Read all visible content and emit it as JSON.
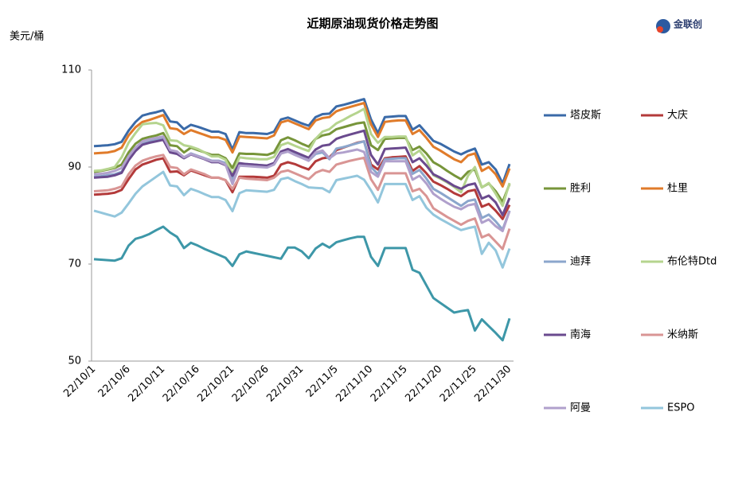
{
  "chart_data": {
    "type": "line",
    "title": "近期原油现货价格走势图",
    "y_label": "美元/桶",
    "logo": "金联创",
    "categories": [
      "22/10/1",
      null,
      null,
      null,
      null,
      "22/10/6",
      null,
      null,
      null,
      null,
      "22/10/11",
      null,
      null,
      null,
      null,
      "22/10/16",
      null,
      null,
      null,
      null,
      "22/10/21",
      null,
      null,
      null,
      null,
      "22/10/26",
      null,
      null,
      null,
      null,
      "22/10/31",
      null,
      null,
      null,
      null,
      "22/11/5",
      null,
      null,
      null,
      null,
      "22/11/10",
      null,
      null,
      null,
      null,
      "22/11/15",
      null,
      null,
      null,
      null,
      "22/11/20",
      null,
      null,
      null,
      null,
      "22/11/25",
      null,
      null,
      null,
      null,
      "22/11/30"
    ],
    "ylim": [
      50,
      110
    ],
    "yticks": [
      50,
      70,
      90,
      110
    ],
    "grid": false,
    "series": [
      {
        "name": "塔皮斯",
        "color": "#3a6aa8",
        "values": [
          94.3,
          94.4,
          94.5,
          94.7,
          95.2,
          97.5,
          99.3,
          100.6,
          101,
          101.3,
          101.7,
          99.4,
          99.2,
          97.8,
          98.7,
          98.3,
          97.8,
          97.3,
          97.3,
          96.8,
          93.6,
          97.2,
          97,
          97,
          96.9,
          96.8,
          97.3,
          99.8,
          100.2,
          99.6,
          99,
          98.5,
          100.3,
          100.9,
          101,
          102.5,
          102.8,
          103.2,
          103.6,
          104,
          99.8,
          97,
          100.3,
          100.4,
          100.5,
          100.5,
          97.7,
          98.6,
          97,
          95.4,
          94.8,
          94,
          93.2,
          92.6,
          93.3,
          93.8,
          90.5,
          91,
          89.5,
          86.6,
          90.6
        ]
      },
      {
        "name": "大庆",
        "color": "#b33a3a",
        "values": [
          84.3,
          84.4,
          84.5,
          84.7,
          85.3,
          87.5,
          89.5,
          90.5,
          91,
          91.5,
          91.8,
          89,
          89.1,
          88.3,
          89.3,
          88.8,
          88.3,
          87.8,
          87.8,
          87.3,
          84.8,
          88,
          88,
          88,
          87.9,
          87.8,
          88.2,
          90.5,
          91,
          90.6,
          90,
          89.5,
          91.2,
          91.8,
          92,
          93.5,
          94,
          94.5,
          95,
          95.3,
          90.5,
          89.5,
          91.8,
          92,
          92.1,
          92.2,
          89.2,
          90.2,
          88.7,
          87,
          86.3,
          85.5,
          84.6,
          84,
          85,
          85.3,
          81.8,
          82.4,
          81,
          79.3,
          82.2
        ]
      },
      {
        "name": "胜利",
        "color": "#77953a",
        "values": [
          89,
          89.2,
          89.5,
          89.8,
          90.5,
          93,
          94.8,
          95.8,
          96.2,
          96.5,
          97,
          94.5,
          94.3,
          93,
          94,
          93.5,
          93,
          92.5,
          92.5,
          91.8,
          89.8,
          92.8,
          92.7,
          92.7,
          92.6,
          92.5,
          93,
          95.5,
          96.1,
          95.5,
          94.8,
          94.2,
          95.8,
          96.5,
          96.8,
          97.8,
          98.2,
          98.6,
          99,
          99.2,
          94.5,
          93.5,
          95.8,
          95.9,
          96,
          96,
          93.5,
          94.2,
          92.8,
          91,
          90.2,
          89.2,
          88.3,
          87.5,
          89,
          89.5,
          85.8,
          86.6,
          85,
          82.8,
          86.5
        ]
      },
      {
        "name": "杜里",
        "color": "#e07b2a",
        "values": [
          92.8,
          92.9,
          93,
          93.3,
          94,
          96.5,
          98.2,
          99.3,
          99.7,
          100.2,
          100.7,
          98,
          97.8,
          96.8,
          97.6,
          97.1,
          96.6,
          96.1,
          96.1,
          95.6,
          93,
          96.3,
          96.2,
          96.1,
          96,
          95.9,
          96.5,
          99.2,
          99.6,
          99,
          98.4,
          97.8,
          99.6,
          100.1,
          100.3,
          101.5,
          102,
          102.4,
          102.8,
          103.2,
          98.8,
          96.2,
          99.3,
          99.5,
          99.6,
          99.6,
          96.8,
          97.6,
          96,
          94.2,
          93.4,
          92.5,
          91.6,
          91,
          92.4,
          92.8,
          89.2,
          90,
          88.5,
          86,
          89.7
        ]
      },
      {
        "name": "迪拜",
        "color": "#8ba6cc",
        "values": [
          88,
          88.1,
          88.3,
          88.5,
          89,
          91.5,
          93.5,
          94.8,
          95.2,
          95.7,
          96.1,
          93.2,
          93,
          92,
          92.8,
          92.3,
          91.8,
          91.3,
          91.3,
          90.8,
          87.2,
          90.7,
          90.6,
          90.5,
          90.4,
          90.3,
          90.8,
          92.8,
          93.2,
          92.6,
          92,
          91.3,
          92.7,
          93,
          91.6,
          93.8,
          94.1,
          94.5,
          94.9,
          95.3,
          90,
          88.5,
          91.6,
          91.7,
          91.8,
          91.8,
          88.6,
          89.4,
          87.6,
          85.5,
          84.7,
          83.8,
          82.9,
          82,
          83,
          83.3,
          79.5,
          80.2,
          78.8,
          77.1,
          81
        ]
      },
      {
        "name": "布伦特Dtd",
        "color": "#b5d48e",
        "values": [
          89.2,
          89.3,
          89.6,
          90,
          92,
          95,
          97,
          98.8,
          99,
          99.1,
          98.6,
          95.5,
          95.4,
          94.5,
          94.2,
          93.7,
          93,
          92.2,
          92.2,
          91.5,
          88.5,
          92,
          91.8,
          91.7,
          91.6,
          91.6,
          92.1,
          94.5,
          95,
          94.4,
          93.8,
          93.3,
          95.8,
          97.3,
          97.8,
          99,
          99.7,
          100.5,
          101.2,
          102,
          96.8,
          95,
          96.2,
          96.2,
          96.3,
          96.3,
          92.4,
          93.4,
          91.5,
          88.3,
          87.6,
          86.8,
          85.9,
          84.8,
          88.2,
          90,
          85.8,
          86.7,
          84.5,
          82,
          86.7
        ]
      },
      {
        "name": "南海",
        "color": "#6a4a8e",
        "values": [
          87.8,
          87.9,
          88,
          88.3,
          88.8,
          91.4,
          93.3,
          94.6,
          95,
          95.3,
          95.6,
          93,
          92.7,
          91.8,
          92.6,
          92.1,
          91.6,
          91,
          91,
          90.4,
          88.2,
          90.8,
          90.6,
          90.5,
          90.4,
          90.3,
          90.8,
          93.2,
          93.7,
          93.1,
          92.5,
          91.9,
          93.6,
          94.4,
          94.6,
          95.8,
          96.3,
          96.7,
          97.1,
          97.5,
          92.5,
          90.5,
          93.7,
          93.8,
          93.9,
          94,
          91,
          91.8,
          90.3,
          88.5,
          87.8,
          87,
          86.1,
          85.5,
          86.3,
          86.6,
          83.5,
          84.1,
          82.7,
          80.1,
          83.6
        ]
      },
      {
        "name": "米纳斯",
        "color": "#d99594",
        "values": [
          85,
          85.1,
          85.2,
          85.5,
          86,
          88.5,
          90.3,
          91.3,
          91.8,
          92.2,
          92.5,
          90,
          89.8,
          88.5,
          89.5,
          89,
          88.5,
          87.8,
          87.8,
          87.3,
          85.5,
          87.8,
          87.6,
          87.5,
          87.4,
          87.3,
          87.8,
          89,
          89.3,
          88.7,
          88.1,
          87.5,
          88.8,
          89.4,
          89,
          90.5,
          90.9,
          91.3,
          91.6,
          91.9,
          87.5,
          85.3,
          88.7,
          88.7,
          88.7,
          88.7,
          85,
          85.5,
          84,
          81.5,
          80.6,
          79.7,
          78.9,
          78.1,
          78.9,
          79.4,
          75.5,
          76.1,
          74.6,
          73.1,
          77.3
        ]
      },
      {
        "name": "阿曼",
        "color": "#b0a0cc",
        "values": [
          88.5,
          88.6,
          88.8,
          89.2,
          89.8,
          92.2,
          94,
          95.3,
          95.7,
          96,
          96.3,
          93.5,
          93.2,
          92,
          92.7,
          92.2,
          91.7,
          91.2,
          91.2,
          90.5,
          86.5,
          90.3,
          90.2,
          90.1,
          90,
          89.9,
          90.5,
          92.8,
          93.2,
          92.5,
          91.9,
          91.3,
          93,
          93.4,
          91.8,
          92.8,
          93,
          93.3,
          93.6,
          93.1,
          89,
          88,
          91.2,
          91.2,
          91.2,
          91.2,
          87.4,
          88.2,
          86.6,
          84.5,
          83.5,
          82.6,
          81.8,
          81.3,
          82.1,
          82.4,
          78.5,
          79.2,
          77.8,
          76.8,
          80.9
        ]
      },
      {
        "name": "ESPO",
        "color": "#93c6dc",
        "values": [
          81,
          80.6,
          80.2,
          79.8,
          80.6,
          82.5,
          84.5,
          86,
          87,
          88,
          89,
          86.2,
          86,
          84.2,
          85.5,
          85,
          84.4,
          83.8,
          83.8,
          83.2,
          80.9,
          84.6,
          85.2,
          85.1,
          85,
          84.9,
          85.3,
          87.5,
          87.8,
          87.1,
          86.5,
          85.8,
          85.7,
          85.6,
          84.8,
          87.3,
          87.6,
          87.9,
          88.2,
          87.4,
          85.2,
          82.7,
          86.5,
          86.5,
          86.5,
          86.5,
          83.2,
          84,
          81.6,
          80.2,
          79.3,
          78.5,
          77.7,
          77,
          77.4,
          77.7,
          72.1,
          74.4,
          72.8,
          69.3,
          73.2
        ]
      },
      {
        "color": "#3d97a8",
        "values": [
          71,
          70.9,
          70.8,
          70.7,
          71.2,
          73.8,
          75.2,
          75.6,
          76.2,
          77,
          77.7,
          76.5,
          75.6,
          73.3,
          74.4,
          73.8,
          73.1,
          72.5,
          71.9,
          71.3,
          69.6,
          72,
          72.6,
          72.3,
          72,
          71.7,
          71.4,
          71.1,
          73.4,
          73.4,
          72.6,
          71.2,
          73.2,
          74.2,
          73.4,
          74.5,
          74.9,
          75.3,
          75.6,
          75.6,
          71.5,
          69.6,
          73.3,
          73.3,
          73.3,
          73.3,
          68.8,
          68.2,
          65.6,
          63,
          62,
          61,
          60,
          60.3,
          60.5,
          56.3,
          58.6,
          57.2,
          55.8,
          54.3,
          58.8
        ]
      }
    ]
  }
}
